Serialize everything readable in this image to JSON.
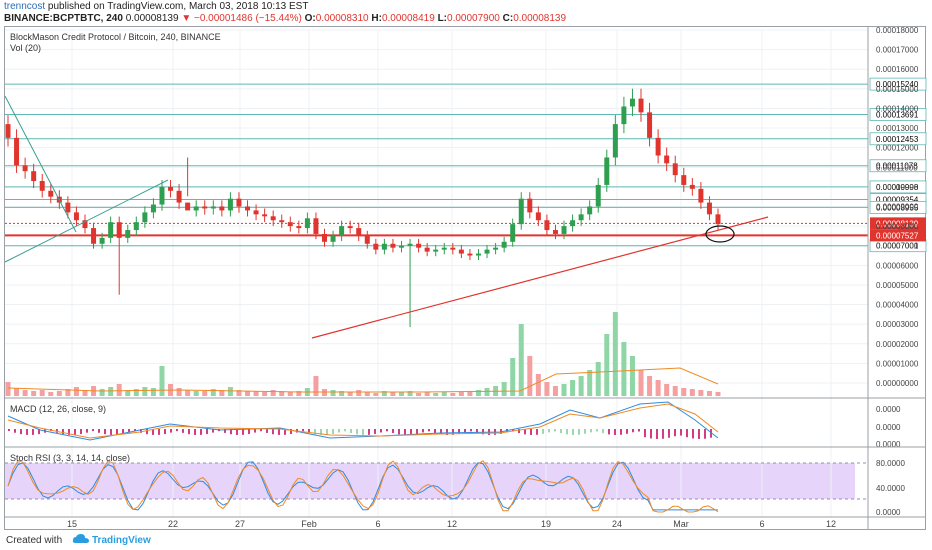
{
  "header": {
    "user": "trenncost",
    "published": "published on TradingView.com, March 03, 2018 10:13 EST",
    "symbol": "BINANCE:BCPTBTC, 240",
    "price": "0.00008139",
    "change": "−0.00001486 (−15.44%)",
    "o_label": "O:",
    "o_value": "0.00008310",
    "h_label": "H:",
    "h_value": "0.00008419",
    "l_label": "L:",
    "l_value": "0.00007900",
    "c_label": "C:",
    "c_value": "0.00008139"
  },
  "chart_title": "BlockMason Credit Protocol / Bitcoin, 240, BINANCE",
  "vol_label": "Vol (20)",
  "macd_label": "MACD (12, 26, close, 9)",
  "stoch_label": "Stoch RSI (3, 3, 14, 14, close)",
  "footer": {
    "created_with": "Created with",
    "brand": "TradingView"
  },
  "colors": {
    "up": "#2e9e4f",
    "down": "#e0352f",
    "level": "#5fb8b4",
    "trend_red": "#e0352f",
    "trend_teal": "#3a9e8f",
    "stoch_bg": "#e6d4fa",
    "macd_blue": "#2f8ce0",
    "macd_orange": "#f08a24"
  },
  "chart_data": {
    "type": "candlestick",
    "x_ticks": [
      "15",
      "22",
      "27",
      "Feb",
      "6",
      "12",
      "19",
      "24",
      "Mar",
      "6",
      "12"
    ],
    "price_ticks": [
      "0.00018000",
      "0.00017000",
      "0.00016000",
      "0.00015000",
      "0.00014000",
      "0.00013000",
      "0.00012000",
      "0.00011000",
      "0.00010000",
      "0.00009000",
      "0.00008000",
      "0.00007000",
      "0.00006000",
      "0.00005000",
      "0.00004000",
      "0.00003000",
      "0.00002000",
      "0.00001000",
      "0.00000000"
    ],
    "level_labels": [
      "0.00015240",
      "0.00013691",
      "0.00012453",
      "0.00011078",
      "0.00009998",
      "0.00009354",
      "0.00008955",
      "0.00007001"
    ],
    "current_price_label": "0.00008139",
    "countdown_label": "46:14",
    "support_label": "0.00007527",
    "macd_ticks": [
      "0.0000",
      "0.0000",
      "0.0000"
    ],
    "stoch_ticks": [
      "80.0000",
      "40.0000",
      "0.0000"
    ],
    "ylim": [
      2.55e-05,
      0.000182
    ],
    "closes": [
      0.000125,
      0.000111,
      0.000108,
      0.000103,
      9.8e-05,
      9.5e-05,
      9.2e-05,
      8.7e-05,
      8.3e-05,
      7.9e-05,
      7.1e-05,
      7.4e-05,
      8.2e-05,
      7.4e-05,
      7.8e-05,
      8.2e-05,
      8.7e-05,
      9.1e-05,
      0.0001,
      9.8e-05,
      9.2e-05,
      8.8e-05,
      9e-05,
      8.9e-05,
      9e-05,
      8.8e-05,
      9.4e-05,
      9e-05,
      8.8e-05,
      8.6e-05,
      8.5e-05,
      8.3e-05,
      8.2e-05,
      8e-05,
      7.9e-05,
      8.4e-05,
      7.6e-05,
      7.2e-05,
      7.5e-05,
      8e-05,
      7.9e-05,
      7.5e-05,
      7.1e-05,
      6.8e-05,
      7.1e-05,
      6.9e-05,
      7e-05,
      7.1e-05,
      6.9e-05,
      6.7e-05,
      6.8e-05,
      6.9e-05,
      6.8e-05,
      6.6e-05,
      6.5e-05,
      6.6e-05,
      6.8e-05,
      6.9e-05,
      7.2e-05,
      8.1e-05,
      9.4e-05,
      8.7e-05,
      8.3e-05,
      7.8e-05,
      7.6e-05,
      8e-05,
      8.3e-05,
      8.6e-05,
      9e-05,
      0.000101,
      0.000115,
      0.000132,
      0.000141,
      0.000145,
      0.000138,
      0.000125,
      0.000116,
      0.000112,
      0.000106,
      0.000101,
      9.9e-05,
      9.2e-05,
      8.6e-05,
      8.1e-05
    ]
  }
}
